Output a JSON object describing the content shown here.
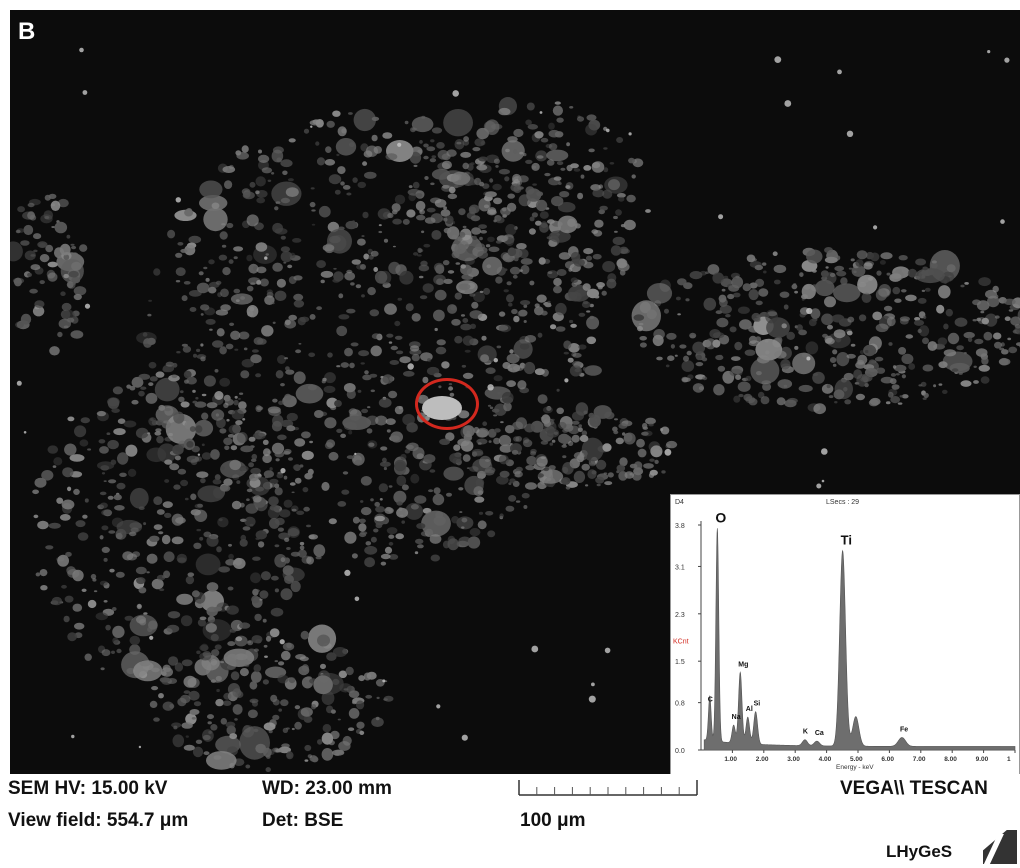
{
  "panel_label": "B",
  "eds_spectrum": {
    "header_left": "D4",
    "header_center": "LSecs : 29",
    "y_axis_unit": "KCnt",
    "y_ticks": [
      "3.8",
      "3.1",
      "2.3",
      "1.5",
      "0.8",
      "0.0"
    ],
    "x_ticks": [
      "1.00",
      "2.00",
      "3.00",
      "4.00",
      "5.00",
      "6.00",
      "7.00",
      "8.00",
      "9.00",
      "1"
    ],
    "x_axis_label": "Energy - keV",
    "peaks": [
      {
        "element": "C",
        "energy_keV": 0.28,
        "counts_kcnt": 0.75
      },
      {
        "element": "O",
        "energy_keV": 0.52,
        "counts_kcnt": 3.6
      },
      {
        "element": "Na",
        "energy_keV": 1.04,
        "counts_kcnt": 0.3
      },
      {
        "element": "Mg",
        "energy_keV": 1.25,
        "counts_kcnt": 1.2
      },
      {
        "element": "Al",
        "energy_keV": 1.49,
        "counts_kcnt": 0.45
      },
      {
        "element": "Si",
        "energy_keV": 1.74,
        "counts_kcnt": 0.55
      },
      {
        "element": "K",
        "energy_keV": 3.31,
        "counts_kcnt": 0.1
      },
      {
        "element": "Ca",
        "energy_keV": 3.69,
        "counts_kcnt": 0.08
      },
      {
        "element": "Ti",
        "energy_keV": 4.51,
        "counts_kcnt": 3.3
      },
      {
        "element": "Ti",
        "energy_keV": 4.93,
        "counts_kcnt": 0.5
      },
      {
        "element": "Fe",
        "energy_keV": 6.4,
        "counts_kcnt": 0.15
      }
    ]
  },
  "info": {
    "sem_hv": "SEM HV: 15.00 kV",
    "wd": "WD: 23.00 mm",
    "view_field": "View field: 554.7 μm",
    "det": "Det: BSE",
    "scale_label": "100 μm",
    "instrument": "VEGA\\\\ TESCAN",
    "lab_logo": "LHyGeS"
  },
  "colors": {
    "background_sem": "#0c0c0c",
    "particle": "#5a5a5a",
    "marker_circle": "#d2281e",
    "spectrum_fill": "#6e6e6e"
  }
}
